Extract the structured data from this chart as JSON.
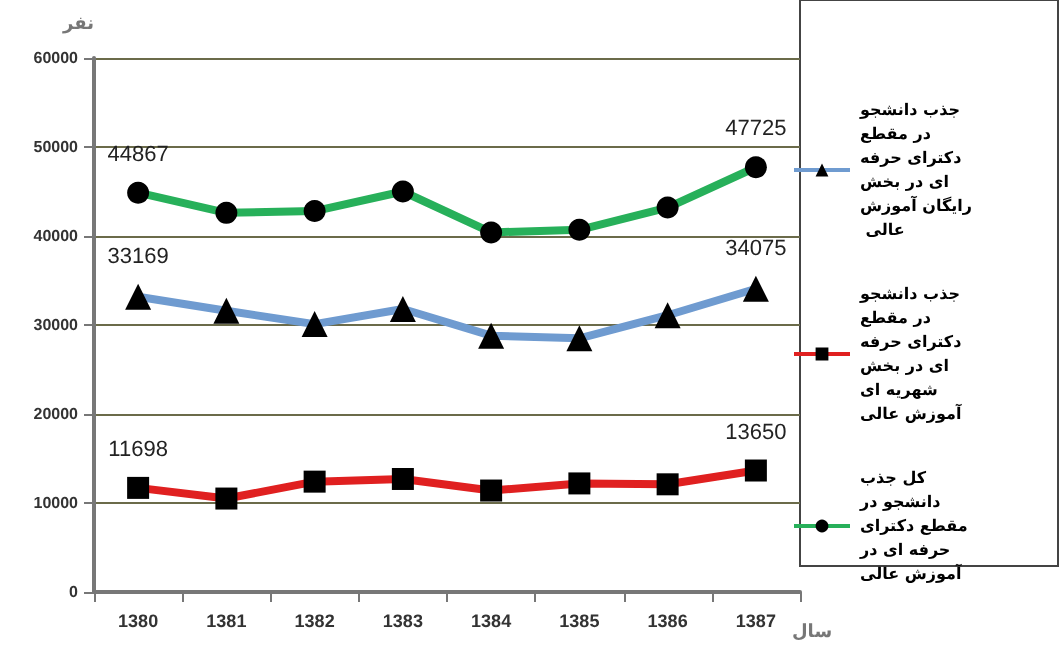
{
  "chart_data": {
    "type": "line",
    "xlabel": "سال",
    "ylabel": "نفر",
    "categories": [
      "1380",
      "1381",
      "1382",
      "1383",
      "1384",
      "1385",
      "1386",
      "1387"
    ],
    "series": [
      {
        "name": "جذب دانشجو در مقطع دکترای حرفه ای در بخش رایگان آموزش عالی",
        "color": "#6f9bd0",
        "marker": "triangle",
        "values": [
          33169,
          31600,
          30100,
          31800,
          28800,
          28500,
          31100,
          34075
        ],
        "value_labels": [
          "33169",
          null,
          null,
          null,
          null,
          null,
          null,
          "34075"
        ]
      },
      {
        "name": "جذب دانشجو در مقطع دکترای حرفه ای در بخش شهریه ای آموزش عالی",
        "color": "#e02020",
        "marker": "square",
        "values": [
          11698,
          10500,
          12400,
          12700,
          11400,
          12200,
          12100,
          13650
        ],
        "value_labels": [
          "11698",
          null,
          null,
          null,
          null,
          null,
          null,
          "13650"
        ]
      },
      {
        "name": "کل جذب دانشجو در مقطع دکترای حرفه ای در آموزش عالی",
        "color": "#27b05a",
        "marker": "circle",
        "values": [
          44867,
          42600,
          42800,
          45000,
          40400,
          40700,
          43200,
          47725
        ],
        "value_labels": [
          "44867",
          null,
          null,
          null,
          null,
          null,
          null,
          "47725"
        ]
      }
    ],
    "ylim": [
      0,
      60000
    ],
    "yticks": [
      0,
      10000,
      20000,
      30000,
      40000,
      50000,
      60000
    ],
    "grid": "y",
    "legend": "right"
  }
}
